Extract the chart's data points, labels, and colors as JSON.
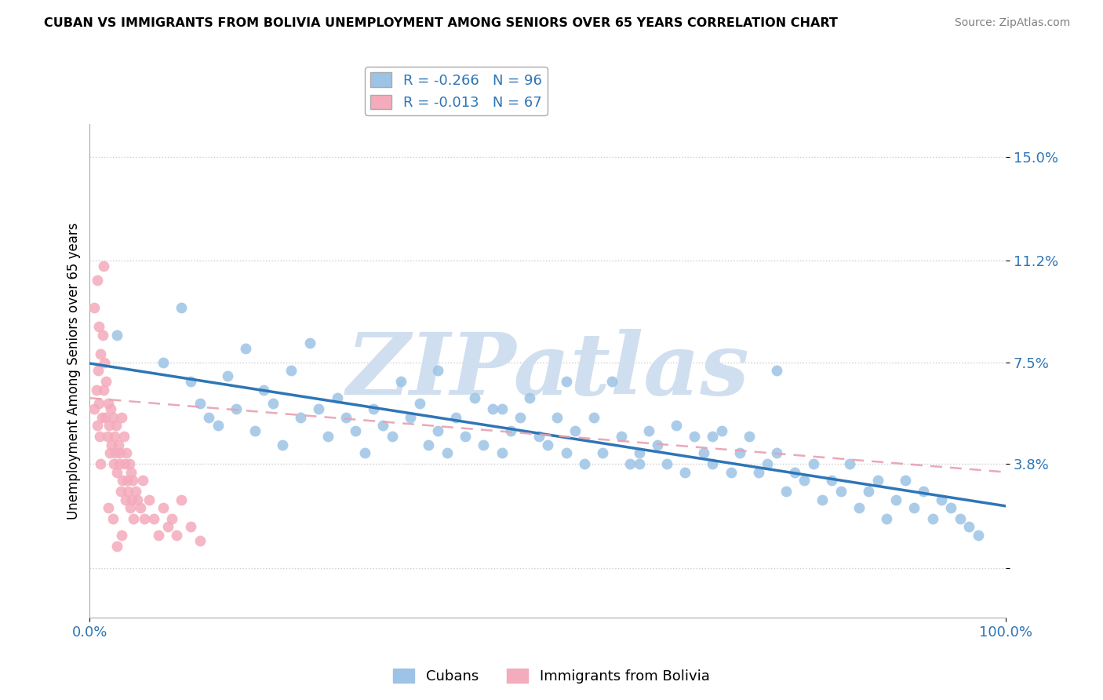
{
  "title": "CUBAN VS IMMIGRANTS FROM BOLIVIA UNEMPLOYMENT AMONG SENIORS OVER 65 YEARS CORRELATION CHART",
  "source": "Source: ZipAtlas.com",
  "ylabel": "Unemployment Among Seniors over 65 years",
  "yticks": [
    0.0,
    0.038,
    0.075,
    0.112,
    0.15
  ],
  "ytick_labels": [
    "",
    "3.8%",
    "7.5%",
    "11.2%",
    "15.0%"
  ],
  "xlim": [
    0.0,
    1.0
  ],
  "ylim": [
    -0.018,
    0.162
  ],
  "cubans_R": -0.266,
  "cubans_N": 96,
  "bolivia_R": -0.013,
  "bolivia_N": 67,
  "color_cubans": "#9DC3E6",
  "color_bolivia": "#F4ABBB",
  "color_cubans_line": "#2E75B6",
  "color_bolivia_line": "#E8A0B0",
  "watermark": "ZIPatlas",
  "watermark_color": "#D0DFF0",
  "background_color": "#FFFFFF",
  "cubans_x": [
    0.03,
    0.08,
    0.1,
    0.11,
    0.12,
    0.13,
    0.14,
    0.15,
    0.16,
    0.17,
    0.18,
    0.19,
    0.2,
    0.21,
    0.22,
    0.23,
    0.24,
    0.25,
    0.26,
    0.27,
    0.28,
    0.29,
    0.3,
    0.31,
    0.32,
    0.33,
    0.34,
    0.35,
    0.36,
    0.37,
    0.38,
    0.39,
    0.4,
    0.41,
    0.42,
    0.43,
    0.44,
    0.45,
    0.46,
    0.47,
    0.48,
    0.49,
    0.5,
    0.51,
    0.52,
    0.53,
    0.54,
    0.55,
    0.56,
    0.57,
    0.58,
    0.59,
    0.6,
    0.61,
    0.62,
    0.63,
    0.64,
    0.65,
    0.66,
    0.67,
    0.68,
    0.69,
    0.7,
    0.71,
    0.72,
    0.73,
    0.74,
    0.75,
    0.76,
    0.77,
    0.78,
    0.79,
    0.8,
    0.81,
    0.82,
    0.83,
    0.84,
    0.85,
    0.86,
    0.87,
    0.88,
    0.89,
    0.9,
    0.91,
    0.92,
    0.93,
    0.94,
    0.95,
    0.96,
    0.97,
    0.38,
    0.45,
    0.52,
    0.6,
    0.68,
    0.75
  ],
  "cubans_y": [
    0.085,
    0.075,
    0.095,
    0.068,
    0.06,
    0.055,
    0.052,
    0.07,
    0.058,
    0.08,
    0.05,
    0.065,
    0.06,
    0.045,
    0.072,
    0.055,
    0.082,
    0.058,
    0.048,
    0.062,
    0.055,
    0.05,
    0.042,
    0.058,
    0.052,
    0.048,
    0.068,
    0.055,
    0.06,
    0.045,
    0.05,
    0.042,
    0.055,
    0.048,
    0.062,
    0.045,
    0.058,
    0.042,
    0.05,
    0.055,
    0.062,
    0.048,
    0.045,
    0.055,
    0.042,
    0.05,
    0.038,
    0.055,
    0.042,
    0.068,
    0.048,
    0.038,
    0.042,
    0.05,
    0.045,
    0.038,
    0.052,
    0.035,
    0.048,
    0.042,
    0.038,
    0.05,
    0.035,
    0.042,
    0.048,
    0.035,
    0.038,
    0.042,
    0.028,
    0.035,
    0.032,
    0.038,
    0.025,
    0.032,
    0.028,
    0.038,
    0.022,
    0.028,
    0.032,
    0.018,
    0.025,
    0.032,
    0.022,
    0.028,
    0.018,
    0.025,
    0.022,
    0.018,
    0.015,
    0.012,
    0.072,
    0.058,
    0.068,
    0.038,
    0.048,
    0.072
  ],
  "bolivia_x": [
    0.005,
    0.007,
    0.008,
    0.009,
    0.01,
    0.011,
    0.012,
    0.013,
    0.014,
    0.015,
    0.016,
    0.017,
    0.018,
    0.019,
    0.02,
    0.021,
    0.022,
    0.023,
    0.024,
    0.025,
    0.026,
    0.027,
    0.028,
    0.029,
    0.03,
    0.031,
    0.032,
    0.033,
    0.034,
    0.035,
    0.036,
    0.037,
    0.038,
    0.039,
    0.04,
    0.041,
    0.042,
    0.043,
    0.044,
    0.045,
    0.046,
    0.047,
    0.048,
    0.05,
    0.052,
    0.055,
    0.058,
    0.06,
    0.065,
    0.07,
    0.075,
    0.08,
    0.085,
    0.09,
    0.095,
    0.1,
    0.11,
    0.12,
    0.005,
    0.008,
    0.012,
    0.015,
    0.02,
    0.01,
    0.025,
    0.03,
    0.035
  ],
  "bolivia_y": [
    0.058,
    0.065,
    0.052,
    0.072,
    0.06,
    0.048,
    0.078,
    0.055,
    0.085,
    0.065,
    0.075,
    0.055,
    0.068,
    0.048,
    0.06,
    0.052,
    0.042,
    0.058,
    0.045,
    0.055,
    0.038,
    0.048,
    0.042,
    0.052,
    0.035,
    0.045,
    0.038,
    0.042,
    0.028,
    0.055,
    0.032,
    0.048,
    0.038,
    0.025,
    0.042,
    0.032,
    0.028,
    0.038,
    0.022,
    0.035,
    0.025,
    0.032,
    0.018,
    0.028,
    0.025,
    0.022,
    0.032,
    0.018,
    0.025,
    0.018,
    0.012,
    0.022,
    0.015,
    0.018,
    0.012,
    0.025,
    0.015,
    0.01,
    0.095,
    0.105,
    0.038,
    0.11,
    0.022,
    0.088,
    0.018,
    0.008,
    0.012
  ]
}
